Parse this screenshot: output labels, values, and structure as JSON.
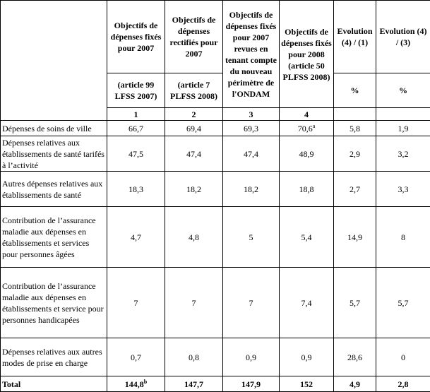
{
  "header": {
    "columns": [
      {
        "title": "Objectifs de dépenses fixés pour 2007",
        "source": "(article 99 LFSS 2007)",
        "number": "1"
      },
      {
        "title": "Objectifs de dépenses rectifiés pour 2007",
        "source": "(article 7 PLFSS 2008)",
        "number": "2"
      },
      {
        "title": "Objectifs de dépenses fixés pour 2007 revues en tenant compte du nouveau périmètre de l'ONDAM",
        "number": "3"
      },
      {
        "title": "Objectifs de dépenses fixés pour 2008 (article 50 PLFSS 2008)",
        "number": "4"
      },
      {
        "title": "Evolution (4) / (1)",
        "unit": "%"
      },
      {
        "title": "Evolution (4) / (3)",
        "unit": "%"
      }
    ]
  },
  "rows": [
    {
      "label": "Dépenses de soins de ville",
      "values": [
        "66,7",
        "69,4",
        "69,3",
        "70,6",
        "5,8",
        "1,9"
      ],
      "note4": "a"
    },
    {
      "label": "Dépenses relatives aux établissements de santé tarifés à l’activité",
      "values": [
        "47,5",
        "47,4",
        "47,4",
        "48,9",
        "2,9",
        "3,2"
      ]
    },
    {
      "label": "Autres dépenses relatives aux établissements de santé",
      "values": [
        "18,3",
        "18,2",
        "18,2",
        "18,8",
        "2,7",
        "3,3"
      ]
    },
    {
      "label": "Contribution de l’assurance maladie aux dépenses en établissements et services pour personnes âgées",
      "values": [
        "4,7",
        "4,8",
        "5",
        "5,4",
        "14,9",
        "8"
      ]
    },
    {
      "label": "Contribution de l’assurance maladie aux dépenses en établissements et service pour personnes handicapées",
      "values": [
        "7",
        "7",
        "7",
        "7,4",
        "5,7",
        "5,7"
      ]
    },
    {
      "label": "Dépenses relatives aux autres modes de prise en charge",
      "values": [
        "0,7",
        "0,8",
        "0,9",
        "0,9",
        "28,6",
        "0"
      ]
    }
  ],
  "total": {
    "label": "Total",
    "values": [
      "144,8",
      "147,7",
      "147,9",
      "152",
      "4,9",
      "2,8"
    ],
    "note1": "b"
  }
}
